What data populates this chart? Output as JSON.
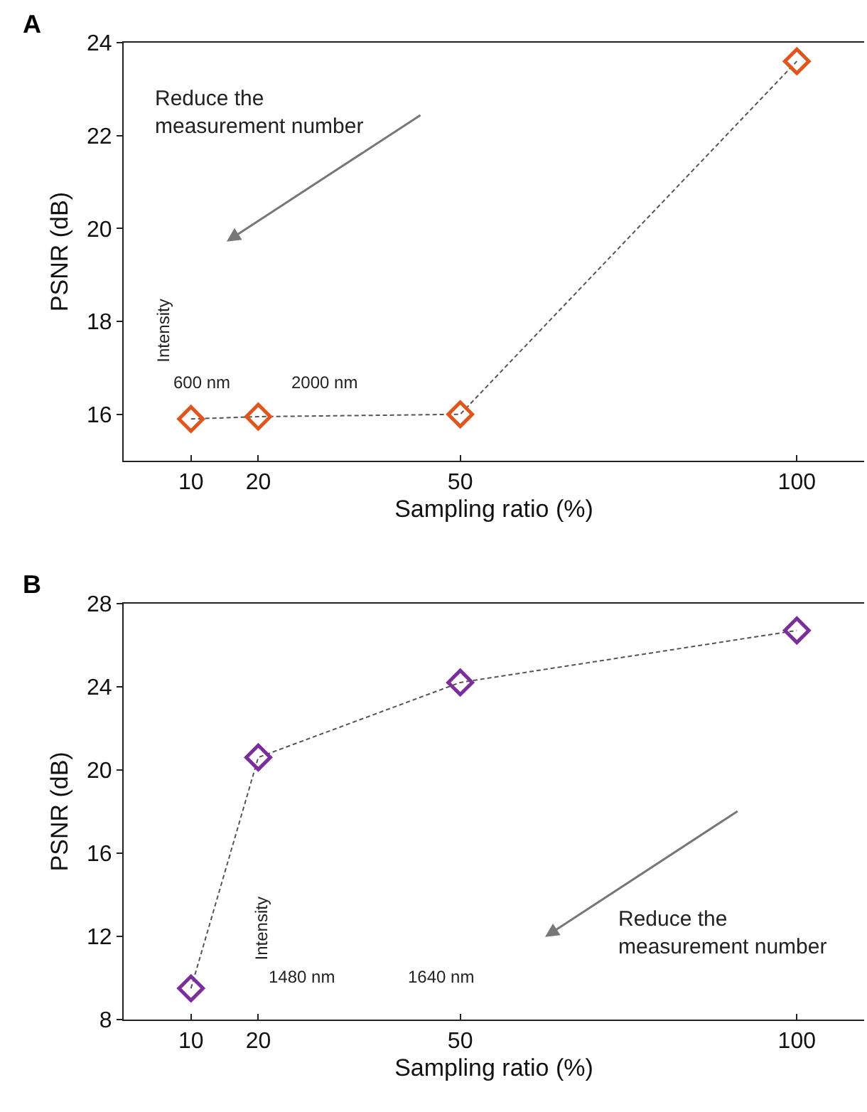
{
  "chart_data": [
    {
      "type": "line",
      "title": "A",
      "xlabel": "Sampling ratio (%)",
      "ylabel": "PSNR (dB)",
      "x": [
        10,
        20,
        50,
        100
      ],
      "series": [
        {
          "color": "#e0541e",
          "values": [
            15.9,
            15.95,
            16.0,
            23.6
          ]
        }
      ],
      "xlim": [
        0,
        110
      ],
      "xticks": [
        10,
        20,
        50,
        100
      ],
      "ylim": [
        15,
        24
      ],
      "yticks": [
        16,
        18,
        20,
        22,
        24
      ],
      "marker": "diamond",
      "line_style": "dashed",
      "annotations": [
        "Reduce the measurement number",
        "Intensity",
        "600 nm",
        "2000 nm"
      ]
    },
    {
      "type": "line",
      "title": "B",
      "xlabel": "Sampling ratio (%)",
      "ylabel": "PSNR (dB)",
      "x": [
        10,
        20,
        50,
        100
      ],
      "series": [
        {
          "color": "#7b2d9b",
          "values": [
            9.5,
            20.6,
            24.2,
            26.7
          ]
        }
      ],
      "xlim": [
        0,
        110
      ],
      "xticks": [
        10,
        20,
        50,
        100
      ],
      "ylim": [
        8,
        28
      ],
      "yticks": [
        8,
        12,
        16,
        20,
        24,
        28
      ],
      "marker": "diamond",
      "line_style": "dashed",
      "annotations": [
        "Reduce the measurement number",
        "Intensity",
        "1480 nm",
        "1640 nm"
      ]
    }
  ]
}
